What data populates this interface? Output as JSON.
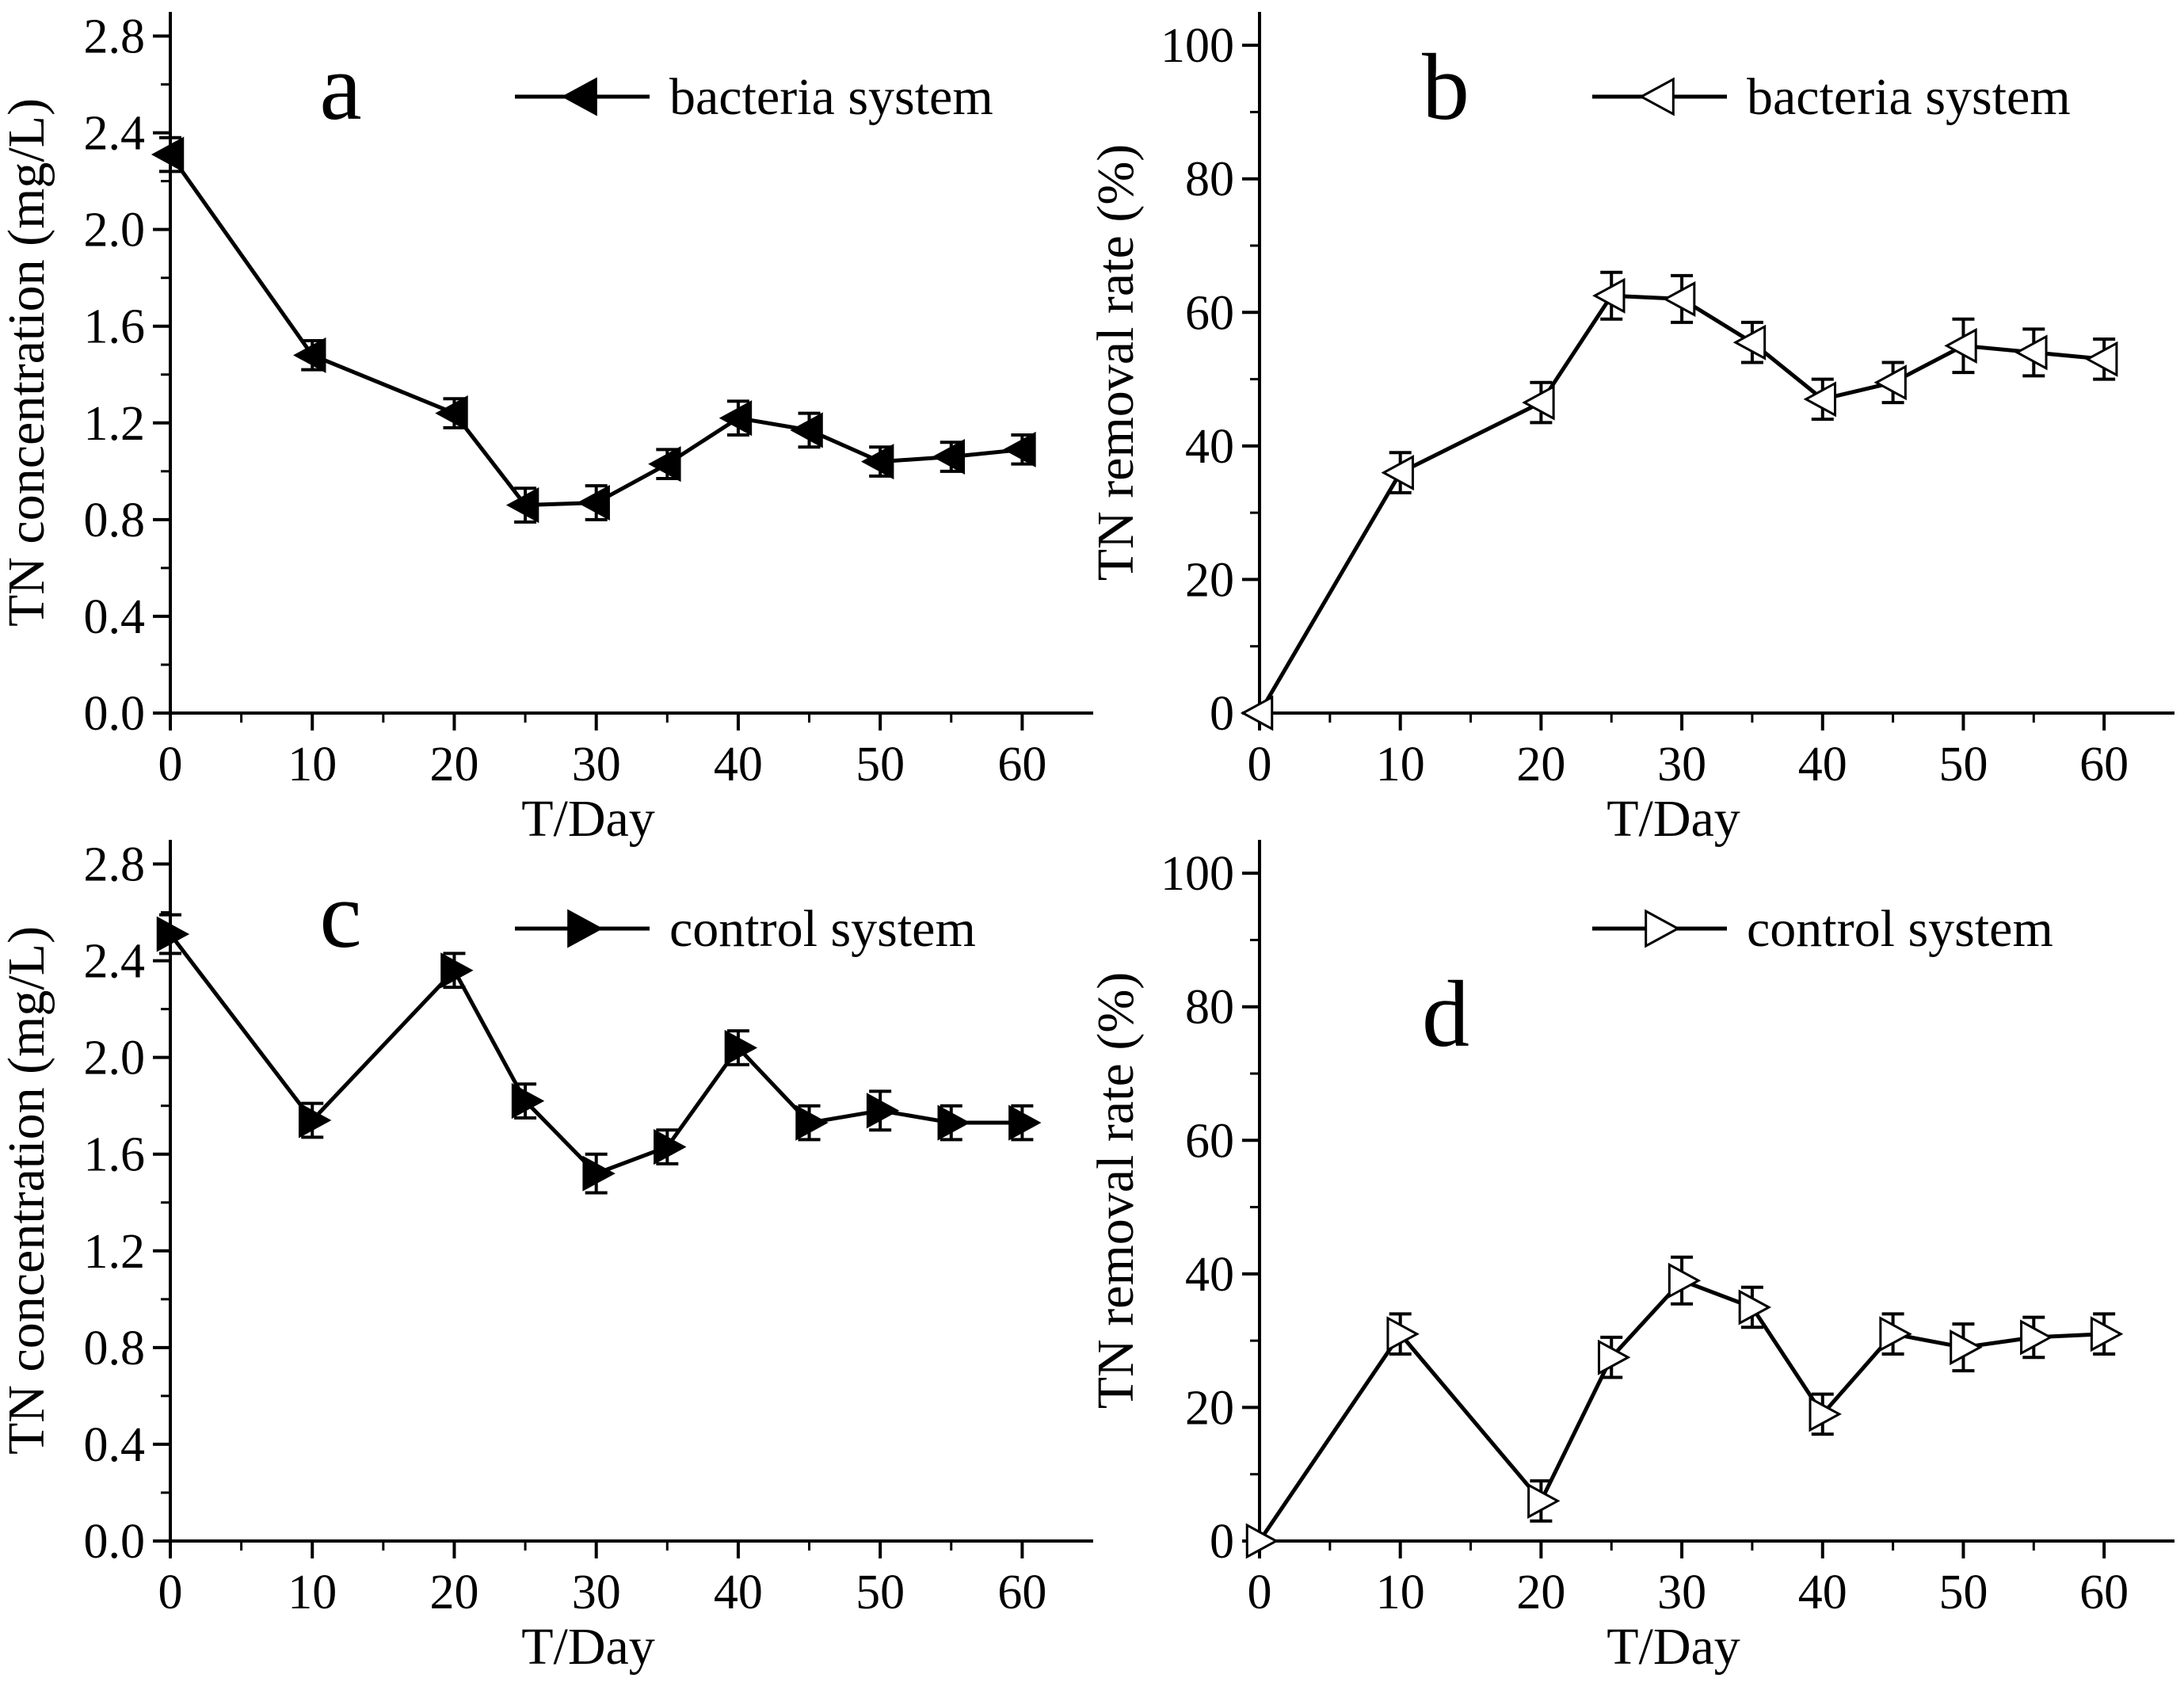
{
  "chart_data": [
    {
      "type": "line",
      "panel_label": "a",
      "xlabel": "T/Day",
      "ylabel": "TN concentration (mg/L)",
      "xlim": [
        0,
        65
      ],
      "ylim": [
        0,
        2.9
      ],
      "xticks": [
        0,
        10,
        20,
        30,
        40,
        50,
        60
      ],
      "xtick_labels": [
        "0",
        "10",
        "20",
        "30",
        "40",
        "50",
        "60"
      ],
      "yticks": [
        0,
        0.4,
        0.8,
        1.2,
        1.6,
        2.0,
        2.4,
        2.8
      ],
      "ytick_labels": [
        "0.0",
        "0.4",
        "0.8",
        "1.2",
        "1.6",
        "2.0",
        "2.4",
        "2.8"
      ],
      "legend_position": "top-right",
      "grid": false,
      "series": [
        {
          "name": "bacteria system",
          "marker": "left-triangle",
          "filled": true,
          "x": [
            0,
            10,
            20,
            25,
            30,
            35,
            40,
            45,
            50,
            55,
            60
          ],
          "y": [
            2.31,
            1.48,
            1.24,
            0.86,
            0.87,
            1.03,
            1.22,
            1.17,
            1.04,
            1.06,
            1.09
          ],
          "err": [
            0.07,
            0.06,
            0.06,
            0.07,
            0.07,
            0.06,
            0.07,
            0.07,
            0.06,
            0.06,
            0.06
          ]
        }
      ]
    },
    {
      "type": "line",
      "panel_label": "b",
      "xlabel": "T/Day",
      "ylabel": "TN removal rate (%)",
      "xlim": [
        0,
        65
      ],
      "ylim": [
        0,
        105
      ],
      "xticks": [
        0,
        10,
        20,
        30,
        40,
        50,
        60
      ],
      "xtick_labels": [
        "0",
        "10",
        "20",
        "30",
        "40",
        "50",
        "60"
      ],
      "yticks": [
        0,
        20,
        40,
        60,
        80,
        100
      ],
      "ytick_labels": [
        "0",
        "20",
        "40",
        "60",
        "80",
        "100"
      ],
      "legend_position": "top-right",
      "grid": false,
      "series": [
        {
          "name": "bacteria system",
          "marker": "left-triangle",
          "filled": false,
          "x": [
            0,
            10,
            20,
            25,
            30,
            35,
            40,
            45,
            50,
            55,
            60
          ],
          "y": [
            0,
            36,
            46.5,
            62.5,
            62,
            55.5,
            47,
            49.5,
            55,
            54,
            53
          ],
          "err": [
            0,
            3,
            3,
            3.5,
            3.5,
            3,
            3,
            3,
            4,
            3.5,
            3
          ]
        }
      ]
    },
    {
      "type": "line",
      "panel_label": "c",
      "xlabel": "T/Day",
      "ylabel": "TN concentration (mg/L)",
      "xlim": [
        0,
        65
      ],
      "ylim": [
        0,
        2.9
      ],
      "xticks": [
        0,
        10,
        20,
        30,
        40,
        50,
        60
      ],
      "xtick_labels": [
        "0",
        "10",
        "20",
        "30",
        "40",
        "50",
        "60"
      ],
      "yticks": [
        0,
        0.4,
        0.8,
        1.2,
        1.6,
        2.0,
        2.4,
        2.8
      ],
      "ytick_labels": [
        "0.0",
        "0.4",
        "0.8",
        "1.2",
        "1.6",
        "2.0",
        "2.4",
        "2.8"
      ],
      "legend_position": "top-right",
      "grid": false,
      "series": [
        {
          "name": "control system",
          "marker": "right-triangle",
          "filled": true,
          "x": [
            0,
            10,
            20,
            25,
            30,
            35,
            40,
            45,
            50,
            55,
            60
          ],
          "y": [
            2.51,
            1.74,
            2.36,
            1.82,
            1.52,
            1.63,
            2.04,
            1.73,
            1.78,
            1.73,
            1.73
          ],
          "err": [
            0.08,
            0.07,
            0.07,
            0.07,
            0.08,
            0.07,
            0.07,
            0.07,
            0.08,
            0.07,
            0.07
          ]
        }
      ]
    },
    {
      "type": "line",
      "panel_label": "d",
      "xlabel": "T/Day",
      "ylabel": "TN removal rate (%)",
      "xlim": [
        0,
        65
      ],
      "ylim": [
        0,
        105
      ],
      "xticks": [
        0,
        10,
        20,
        30,
        40,
        50,
        60
      ],
      "xtick_labels": [
        "0",
        "10",
        "20",
        "30",
        "40",
        "50",
        "60"
      ],
      "yticks": [
        0,
        20,
        40,
        60,
        80,
        100
      ],
      "ytick_labels": [
        "0",
        "20",
        "40",
        "60",
        "80",
        "100"
      ],
      "legend_position": "top-right",
      "grid": false,
      "series": [
        {
          "name": "control system",
          "marker": "right-triangle",
          "filled": false,
          "x": [
            0,
            10,
            20,
            25,
            30,
            35,
            40,
            45,
            50,
            55,
            60
          ],
          "y": [
            0,
            31,
            6,
            27.5,
            39,
            35,
            19,
            31,
            29,
            30.5,
            31
          ],
          "err": [
            0,
            3,
            3,
            3,
            3.5,
            3,
            3,
            3,
            3.5,
            3,
            3
          ]
        }
      ]
    }
  ]
}
